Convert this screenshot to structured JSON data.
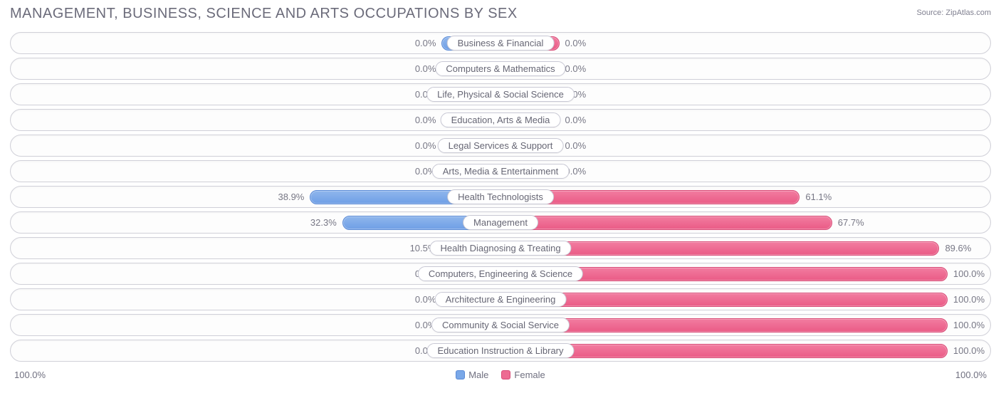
{
  "title": "MANAGEMENT, BUSINESS, SCIENCE AND ARTS OCCUPATIONS BY SEX",
  "source_label": "Source:",
  "source_name": "ZipAtlas.com",
  "axis_left": "100.0%",
  "axis_right": "100.0%",
  "legend": {
    "male": "Male",
    "female": "Female"
  },
  "chart": {
    "type": "diverging-bar",
    "min_bar_pct": 12,
    "colors": {
      "male_fill": "#7aa8e8",
      "male_border": "#5a8ad6",
      "female_fill": "#ed6b92",
      "female_border": "#d84a76",
      "row_border": "#d0d0d8",
      "text": "#6b6b7a",
      "bg": "#ffffff"
    },
    "rows": [
      {
        "label": "Business & Financial",
        "male_pct": 0.0,
        "female_pct": 0.0,
        "male_label": "0.0%",
        "female_label": "0.0%"
      },
      {
        "label": "Computers & Mathematics",
        "male_pct": 0.0,
        "female_pct": 0.0,
        "male_label": "0.0%",
        "female_label": "0.0%"
      },
      {
        "label": "Life, Physical & Social Science",
        "male_pct": 0.0,
        "female_pct": 0.0,
        "male_label": "0.0%",
        "female_label": "0.0%"
      },
      {
        "label": "Education, Arts & Media",
        "male_pct": 0.0,
        "female_pct": 0.0,
        "male_label": "0.0%",
        "female_label": "0.0%"
      },
      {
        "label": "Legal Services & Support",
        "male_pct": 0.0,
        "female_pct": 0.0,
        "male_label": "0.0%",
        "female_label": "0.0%"
      },
      {
        "label": "Arts, Media & Entertainment",
        "male_pct": 0.0,
        "female_pct": 0.0,
        "male_label": "0.0%",
        "female_label": "0.0%"
      },
      {
        "label": "Health Technologists",
        "male_pct": 38.9,
        "female_pct": 61.1,
        "male_label": "38.9%",
        "female_label": "61.1%"
      },
      {
        "label": "Management",
        "male_pct": 32.3,
        "female_pct": 67.7,
        "male_label": "32.3%",
        "female_label": "67.7%"
      },
      {
        "label": "Health Diagnosing & Treating",
        "male_pct": 10.5,
        "female_pct": 89.6,
        "male_label": "10.5%",
        "female_label": "89.6%"
      },
      {
        "label": "Computers, Engineering & Science",
        "male_pct": 0.0,
        "female_pct": 100.0,
        "male_label": "0.0%",
        "female_label": "100.0%"
      },
      {
        "label": "Architecture & Engineering",
        "male_pct": 0.0,
        "female_pct": 100.0,
        "male_label": "0.0%",
        "female_label": "100.0%"
      },
      {
        "label": "Community & Social Service",
        "male_pct": 0.0,
        "female_pct": 100.0,
        "male_label": "0.0%",
        "female_label": "100.0%"
      },
      {
        "label": "Education Instruction & Library",
        "male_pct": 0.0,
        "female_pct": 100.0,
        "male_label": "0.0%",
        "female_label": "100.0%"
      }
    ]
  }
}
